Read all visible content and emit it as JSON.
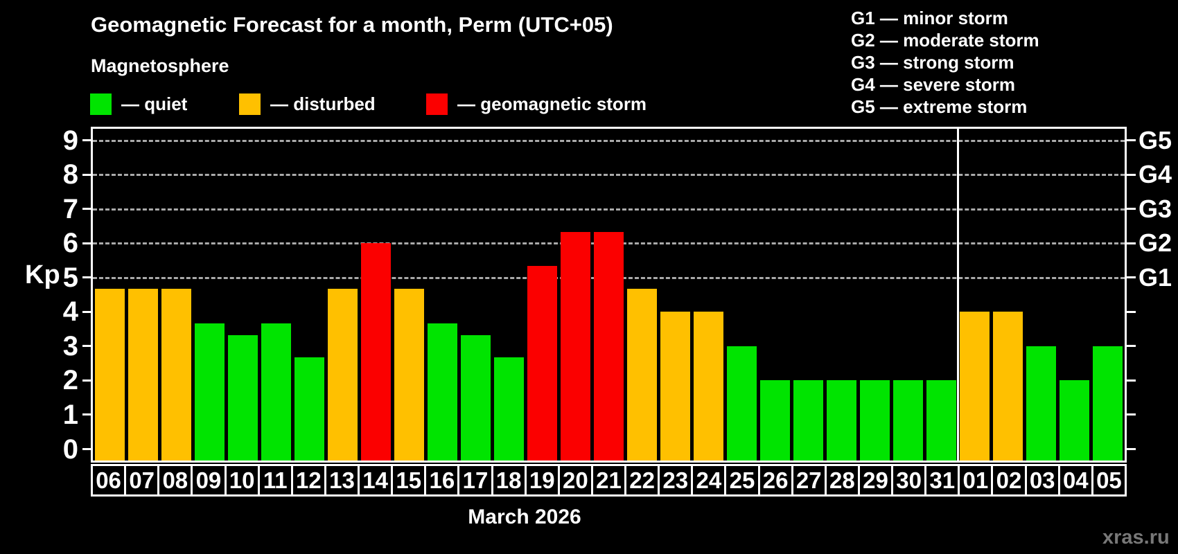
{
  "title": "Geomagnetic Forecast for a month, Perm (UTC+05)",
  "subtitle": "Magnetosphere",
  "legend": {
    "quiet_label": "— quiet",
    "disturbed_label": "— disturbed",
    "storm_label": "— geomagnetic storm"
  },
  "g_legend": [
    "G1 — minor storm",
    "G2 — moderate storm",
    "G3 — strong storm",
    "G4 — severe storm",
    "G5 — extreme storm"
  ],
  "axis": {
    "kp_label": "Kp",
    "y_ticks": [
      "0",
      "1",
      "2",
      "3",
      "4",
      "5",
      "6",
      "7",
      "8",
      "9"
    ],
    "g_axis_labels": [
      "G1",
      "G2",
      "G3",
      "G4",
      "G5"
    ],
    "x_label": "March 2026"
  },
  "watermark": "xras.ru",
  "colors": {
    "quiet": "#00e400",
    "disturbed": "#ffc000",
    "storm": "#fb0000",
    "grid": "#aaaaaa",
    "axis": "#ffffff",
    "watermark": "#787878"
  },
  "chart_data": {
    "type": "bar",
    "title": "Geomagnetic Forecast for a month, Perm (UTC+05)",
    "xlabel": "March 2026",
    "ylabel": "Kp",
    "ylim": [
      0,
      9
    ],
    "grid_kp": [
      5,
      6,
      7,
      8,
      9
    ],
    "g_levels": {
      "G1": 5,
      "G2": 6,
      "G3": 7,
      "G4": 8,
      "G5": 9
    },
    "legend_position": "top",
    "month_separator_before_day": "01",
    "days": [
      {
        "day": "06",
        "kp": 4.67,
        "state": "disturbed"
      },
      {
        "day": "07",
        "kp": 4.67,
        "state": "disturbed"
      },
      {
        "day": "08",
        "kp": 4.67,
        "state": "disturbed"
      },
      {
        "day": "09",
        "kp": 3.67,
        "state": "quiet"
      },
      {
        "day": "10",
        "kp": 3.33,
        "state": "quiet"
      },
      {
        "day": "11",
        "kp": 3.67,
        "state": "quiet"
      },
      {
        "day": "12",
        "kp": 2.67,
        "state": "quiet"
      },
      {
        "day": "13",
        "kp": 4.67,
        "state": "disturbed"
      },
      {
        "day": "14",
        "kp": 6.0,
        "state": "storm"
      },
      {
        "day": "15",
        "kp": 4.67,
        "state": "disturbed"
      },
      {
        "day": "16",
        "kp": 3.67,
        "state": "quiet"
      },
      {
        "day": "17",
        "kp": 3.33,
        "state": "quiet"
      },
      {
        "day": "18",
        "kp": 2.67,
        "state": "quiet"
      },
      {
        "day": "19",
        "kp": 5.33,
        "state": "storm"
      },
      {
        "day": "20",
        "kp": 6.33,
        "state": "storm"
      },
      {
        "day": "21",
        "kp": 6.33,
        "state": "storm"
      },
      {
        "day": "22",
        "kp": 4.67,
        "state": "disturbed"
      },
      {
        "day": "23",
        "kp": 4.0,
        "state": "disturbed"
      },
      {
        "day": "24",
        "kp": 4.0,
        "state": "disturbed"
      },
      {
        "day": "25",
        "kp": 3.0,
        "state": "quiet"
      },
      {
        "day": "26",
        "kp": 2.0,
        "state": "quiet"
      },
      {
        "day": "27",
        "kp": 2.0,
        "state": "quiet"
      },
      {
        "day": "28",
        "kp": 2.0,
        "state": "quiet"
      },
      {
        "day": "29",
        "kp": 2.0,
        "state": "quiet"
      },
      {
        "day": "30",
        "kp": 2.0,
        "state": "quiet"
      },
      {
        "day": "31",
        "kp": 2.0,
        "state": "quiet"
      },
      {
        "day": "01",
        "kp": 4.0,
        "state": "disturbed"
      },
      {
        "day": "02",
        "kp": 4.0,
        "state": "disturbed"
      },
      {
        "day": "03",
        "kp": 3.0,
        "state": "quiet"
      },
      {
        "day": "04",
        "kp": 2.0,
        "state": "quiet"
      },
      {
        "day": "05",
        "kp": 3.0,
        "state": "quiet"
      }
    ]
  }
}
